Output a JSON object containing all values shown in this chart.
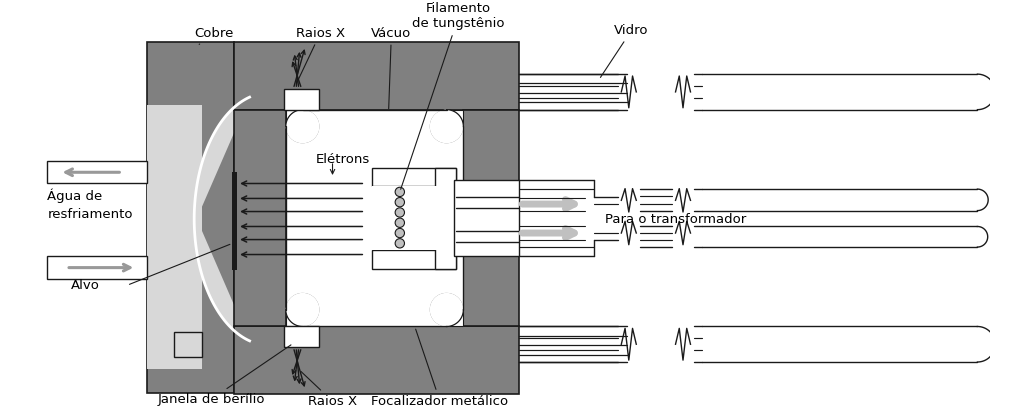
{
  "bg_color": "#ffffff",
  "dark_gray": "#808080",
  "mid_gray": "#999999",
  "light_gray": "#c0c0c0",
  "lighter_gray": "#d8d8d8",
  "black": "#1a1a1a",
  "white": "#ffffff",
  "labels": {
    "cobre": "Cobre",
    "raios_x_top": "Raios X",
    "vacuo": "Vácuo",
    "filamento": "Filamento\nde tungstênio",
    "vidro": "Vidro",
    "eletrons": "Elétrons",
    "agua": "Água de\nresfriamento",
    "alvo": "Alvo",
    "janela": "Janela de berílio",
    "raios_x_bot": "Raios X",
    "focalizador": "Focalizador metálico",
    "transformador": "Para o transformador"
  }
}
